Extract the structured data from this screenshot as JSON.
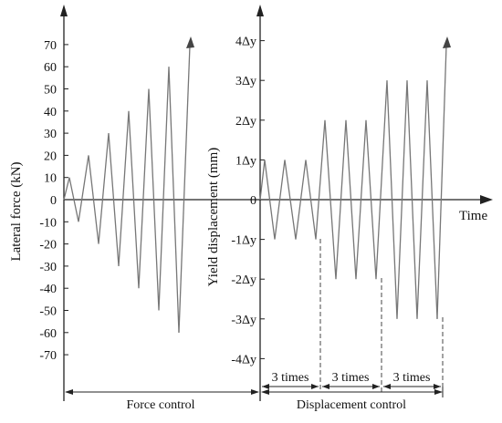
{
  "left_axis": {
    "title": "Lateral force (kN)",
    "ticks": [
      "70",
      "60",
      "50",
      "40",
      "30",
      "20",
      "10",
      "0",
      "-10",
      "-20",
      "-30",
      "-40",
      "-50",
      "-60",
      "-70"
    ]
  },
  "right_axis": {
    "title": "Yield displacement (mm)",
    "ticks": [
      "4Δy",
      "3Δy",
      "2Δy",
      "1Δy",
      "0",
      "-1Δy",
      "-2Δy",
      "-3Δy",
      "-4Δy"
    ]
  },
  "time_label": "Time",
  "annotations": {
    "times": [
      "3 times",
      "3 times",
      "3 times"
    ],
    "force_control": "Force control",
    "displacement_control": "Displacement control"
  },
  "chart_data": {
    "type": "line",
    "force_control_peaks_kN": [
      10,
      -10,
      20,
      -20,
      30,
      -30,
      40,
      -40,
      50,
      -50,
      60,
      -60
    ],
    "displacement_control_peaks_dy": [
      1,
      -1,
      1,
      -1,
      1,
      -1,
      2,
      -2,
      2,
      -2,
      2,
      -2,
      3,
      -3,
      3,
      -3,
      3,
      -3
    ],
    "left_ylim": [
      -70,
      70
    ],
    "right_ylim": [
      -4,
      4
    ]
  }
}
